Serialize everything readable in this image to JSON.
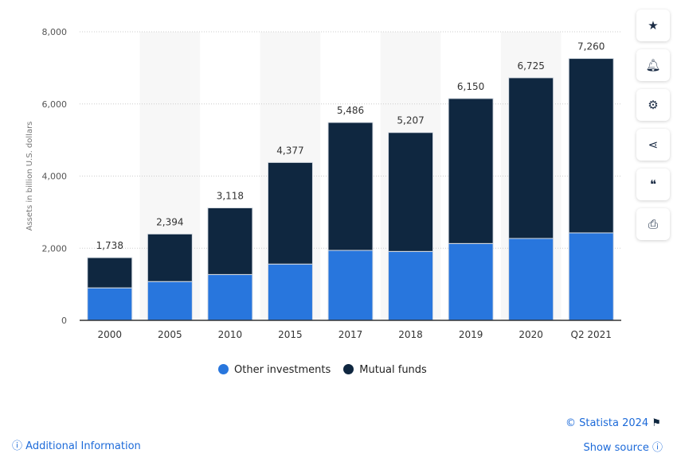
{
  "chart_data": {
    "type": "bar",
    "stacked": true,
    "categories": [
      "2000",
      "2005",
      "2010",
      "2015",
      "2017",
      "2018",
      "2019",
      "2020",
      "Q2 2021"
    ],
    "series": [
      {
        "name": "Other investments",
        "color": "#2876dd",
        "values": [
          900,
          1075,
          1270,
          1560,
          1940,
          1910,
          2130,
          2270,
          2425
        ]
      },
      {
        "name": "Mutual funds",
        "color": "#0f2740",
        "values": [
          838,
          1319,
          1848,
          2817,
          3546,
          3297,
          4020,
          4455,
          4835
        ]
      }
    ],
    "totals": [
      "1,738",
      "2,394",
      "3,118",
      "4,377",
      "5,486",
      "5,207",
      "6,150",
      "6,725",
      "7,260"
    ],
    "total_values": [
      1738,
      2394,
      3118,
      4377,
      5486,
      5207,
      6150,
      6725,
      7260
    ],
    "ylabel": "Assets in billion U.S. dollars",
    "ylim": [
      0,
      8000
    ],
    "yticks": [
      "0",
      "2,000",
      "4,000",
      "6,000",
      "8,000"
    ],
    "ytick_values": [
      0,
      2000,
      4000,
      6000,
      8000
    ],
    "grid": true,
    "legend": "bottom"
  },
  "sidebar": [
    "star-icon",
    "bell-icon",
    "gear-icon",
    "share-icon",
    "quote-icon",
    "print-icon"
  ],
  "footer": {
    "copyright": "© Statista 2024",
    "additional": "Additional Information",
    "source": "Show source"
  }
}
